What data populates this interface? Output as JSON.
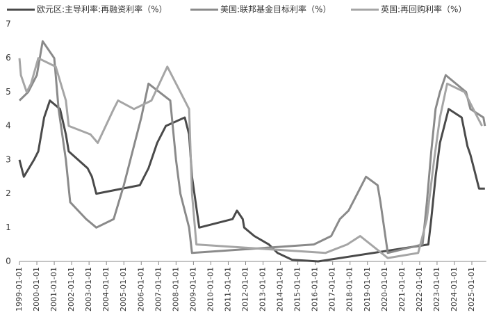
{
  "chart_data": {
    "type": "line",
    "series": [
      {
        "name": "欧元区:主导利率:再融资利率（%）",
        "color": "#4a4a4a",
        "x": [
          "1999-01-01",
          "1999-04-01",
          "1999-11-01",
          "2000-02-01",
          "2000-06-01",
          "2000-10-01",
          "2001-05-01",
          "2001-09-01",
          "2001-11-01",
          "2002-12-01",
          "2003-03-01",
          "2003-06-01",
          "2005-12-01",
          "2006-06-01",
          "2006-12-01",
          "2007-06-01",
          "2008-07-01",
          "2008-10-01",
          "2008-12-01",
          "2009-05-01",
          "2011-04-01",
          "2011-07-01",
          "2011-11-01",
          "2011-12-01",
          "2012-07-01",
          "2013-05-01",
          "2013-11-01",
          "2014-09-01",
          "2016-03-01",
          "2022-07-01",
          "2022-09-01",
          "2022-12-01",
          "2023-03-01",
          "2023-09-01",
          "2024-06-01",
          "2024-10-01",
          "2024-12-01",
          "2025-03-01",
          "2025-06-01",
          "2025-10-01"
        ],
        "values": [
          3.0,
          2.5,
          3.0,
          3.25,
          4.25,
          4.75,
          4.5,
          3.75,
          3.25,
          2.75,
          2.5,
          2.0,
          2.25,
          2.75,
          3.5,
          4.0,
          4.25,
          3.75,
          2.5,
          1.0,
          1.25,
          1.5,
          1.25,
          1.0,
          0.75,
          0.5,
          0.25,
          0.05,
          0.0,
          0.5,
          1.25,
          2.5,
          3.5,
          4.5,
          4.25,
          3.4,
          3.15,
          2.65,
          2.15,
          2.15
        ]
      },
      {
        "name": "美国:联邦基金目标利率（%）",
        "color": "#8a8a8a",
        "x": [
          "1999-01-01",
          "1999-07-01",
          "2000-01-01",
          "2000-05-01",
          "2001-01-01",
          "2001-04-01",
          "2001-09-01",
          "2001-12-01",
          "2002-11-01",
          "2003-06-01",
          "2004-06-01",
          "2005-01-01",
          "2006-01-01",
          "2006-06-01",
          "2007-09-01",
          "2008-01-01",
          "2008-04-01",
          "2008-10-01",
          "2008-12-01",
          "2015-12-01",
          "2016-12-01",
          "2017-06-01",
          "2017-12-01",
          "2018-06-01",
          "2018-12-01",
          "2019-08-01",
          "2019-10-01",
          "2020-03-01",
          "2022-03-01",
          "2022-06-01",
          "2022-09-01",
          "2022-12-01",
          "2023-03-01",
          "2023-07-01",
          "2024-09-01",
          "2024-12-01",
          "2025-09-01",
          "2025-10-01"
        ],
        "values": [
          4.75,
          5.0,
          5.5,
          6.5,
          6.0,
          4.5,
          3.0,
          1.75,
          1.25,
          1.0,
          1.25,
          2.25,
          4.25,
          5.25,
          4.75,
          3.0,
          2.0,
          1.0,
          0.25,
          0.5,
          0.75,
          1.25,
          1.5,
          2.0,
          2.5,
          2.25,
          1.75,
          0.25,
          0.5,
          1.75,
          3.25,
          4.5,
          5.0,
          5.5,
          5.0,
          4.5,
          4.25,
          4.0
        ]
      },
      {
        "name": "英国:再回购利率（%）",
        "color": "#a5a5a5",
        "x": [
          "1999-01-01",
          "1999-02-01",
          "1999-06-01",
          "1999-09-01",
          "2000-02-01",
          "2001-02-01",
          "2001-09-01",
          "2001-11-01",
          "2003-02-01",
          "2003-07-01",
          "2004-06-01",
          "2004-09-01",
          "2005-08-01",
          "2006-08-01",
          "2007-07-01",
          "2008-04-01",
          "2008-10-01",
          "2008-12-01",
          "2009-03-01",
          "2016-08-01",
          "2017-11-01",
          "2018-08-01",
          "2020-03-01",
          "2021-12-01",
          "2022-06-01",
          "2022-11-01",
          "2023-03-01",
          "2023-08-01",
          "2024-08-01",
          "2024-11-01",
          "2025-05-01",
          "2025-08-01"
        ],
        "values": [
          6.0,
          5.5,
          5.0,
          5.25,
          6.0,
          5.75,
          4.75,
          4.0,
          3.75,
          3.5,
          4.5,
          4.75,
          4.5,
          4.75,
          5.75,
          5.0,
          4.5,
          2.0,
          0.5,
          0.25,
          0.5,
          0.75,
          0.1,
          0.25,
          1.25,
          3.0,
          4.25,
          5.25,
          5.0,
          4.75,
          4.25,
          4.0
        ]
      }
    ],
    "ylim": [
      0,
      7
    ],
    "yticks": [
      0,
      1,
      2,
      3,
      4,
      5,
      6,
      7
    ],
    "xlim": [
      "1999-01-01",
      "2025-10-01"
    ],
    "xticks": [
      "1999-01-01",
      "2000-01-01",
      "2001-01-01",
      "2002-01-01",
      "2003-01-01",
      "2004-01-01",
      "2005-01-01",
      "2006-01-01",
      "2007-01-01",
      "2008-01-01",
      "2009-01-01",
      "2010-01-01",
      "2011-01-01",
      "2012-01-01",
      "2013-01-01",
      "2014-01-01",
      "2015-01-01",
      "2016-01-01",
      "2017-01-01",
      "2018-01-01",
      "2019-01-01",
      "2020-01-01",
      "2021-01-01",
      "2022-01-01",
      "2023-01-01",
      "2024-01-01",
      "2025-01-01"
    ],
    "grid": false,
    "legend": "top"
  }
}
